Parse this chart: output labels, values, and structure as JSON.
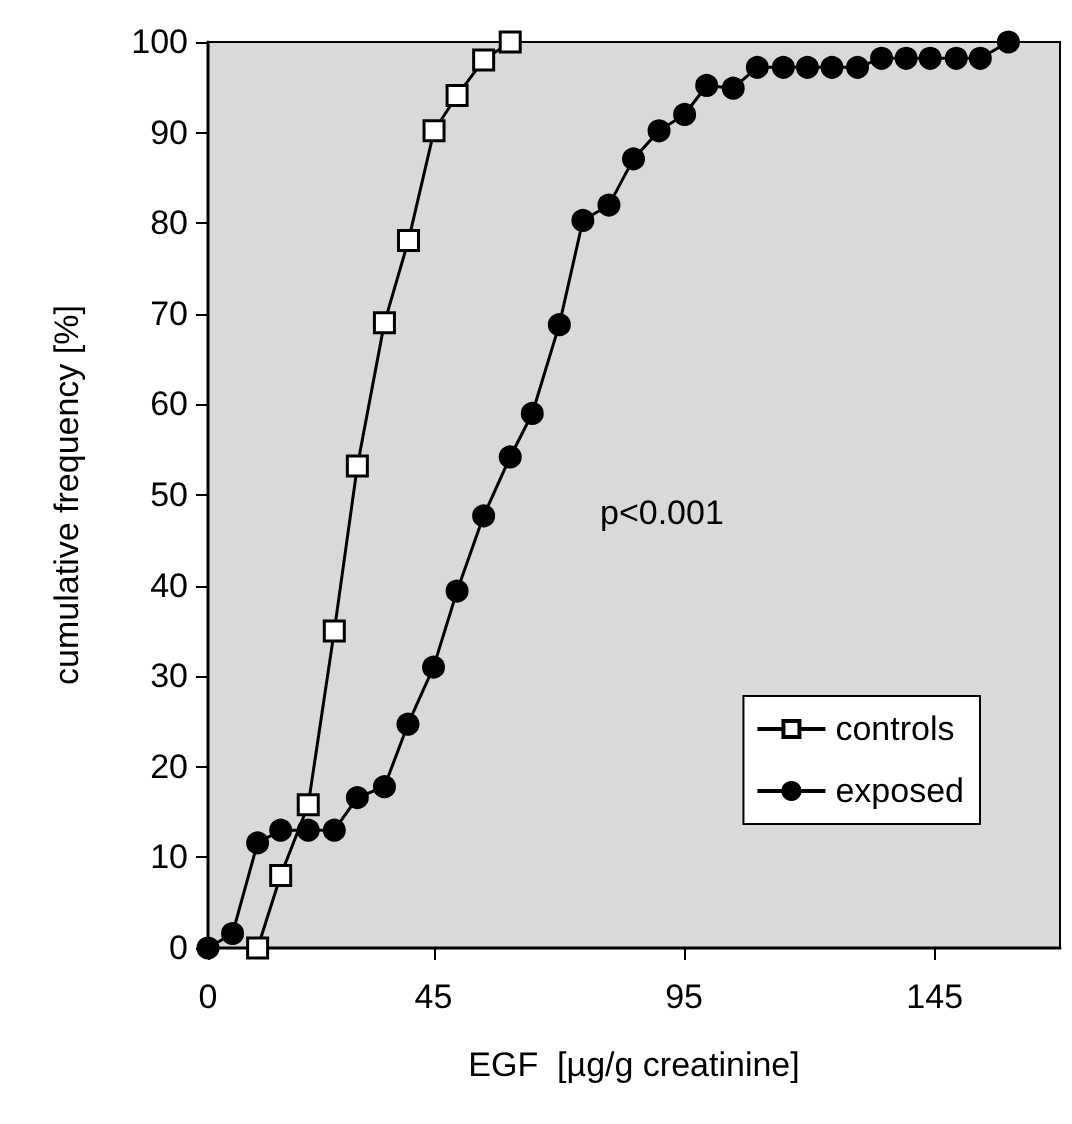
{
  "chart_data": {
    "type": "line",
    "xlabel": "EGF  [µg/g creatinine]",
    "ylabel": "cumulative frequency [%]",
    "annotations": [
      "p<0.001"
    ],
    "xlim": [
      0,
      170
    ],
    "xticks": [
      0,
      45,
      95,
      145
    ],
    "ylim": [
      0,
      100
    ],
    "yticks": [
      0,
      10,
      20,
      30,
      40,
      50,
      60,
      70,
      80,
      90,
      100
    ],
    "grid": false,
    "legend": "bottom right",
    "line_style": "solid",
    "series": [
      {
        "name": "controls",
        "color": "#000000",
        "marker": "square",
        "x": [
          9.9,
          14.5,
          20,
          25.2,
          29.8,
          35.2,
          40,
          45.1,
          49.7,
          55,
          60.3
        ],
        "values": [
          0,
          8,
          15.8,
          35,
          53.2,
          69,
          78.1,
          90.2,
          94.1,
          98,
          100
        ]
      },
      {
        "name": "exposed",
        "color": "#000000",
        "marker": "circle",
        "x": [
          0,
          4.9,
          9.9,
          14.5,
          20,
          25.2,
          29.8,
          35.2,
          39.9,
          45,
          49.7,
          55,
          60.3,
          64.7,
          70.1,
          74.8,
          80,
          84.9,
          90,
          95.1,
          99.5,
          104.8,
          109.6,
          114.8,
          119.6,
          124.5,
          129.6,
          134.4,
          139.3,
          144.1,
          149.3,
          154.1,
          159.7
        ],
        "values": [
          0,
          1.6,
          11.6,
          13,
          13,
          13,
          16.6,
          17.8,
          24.7,
          31,
          39.4,
          47.7,
          54.2,
          59,
          68.8,
          80.3,
          82,
          87.1,
          90.2,
          92,
          95.2,
          94.9,
          97.2,
          97.2,
          97.2,
          97.2,
          97.2,
          98.2,
          98.2,
          98.2,
          98.2,
          98.2,
          100
        ]
      }
    ]
  }
}
